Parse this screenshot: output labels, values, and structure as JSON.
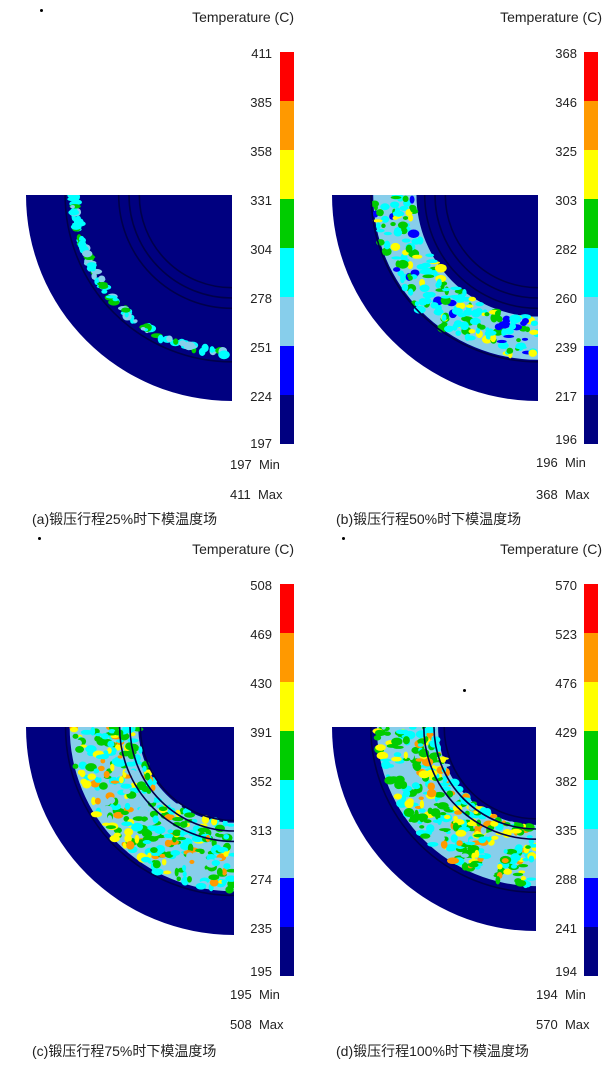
{
  "legend_title": "Temperature (C)",
  "min_label": "Min",
  "max_label": "Max",
  "color_scale": [
    "#000080",
    "#0000ff",
    "#87ceeb",
    "#00ffff",
    "#00cc00",
    "#ffff00",
    "#ff9900",
    "#ff0000"
  ],
  "panels": [
    {
      "caption": "(a)锻压行程25%时下模温度场",
      "ticks": [
        "411",
        "385",
        "358",
        "331",
        "304",
        "278",
        "251",
        "224",
        "197"
      ],
      "min_value": "197",
      "max_value": "411",
      "hot_band": {
        "inner_frac": 0.74,
        "outer_frac": 0.8,
        "level": "weak"
      }
    },
    {
      "caption": "(b)锻压行程50%时下模温度场",
      "ticks": [
        "368",
        "346",
        "325",
        "303",
        "282",
        "260",
        "239",
        "217",
        "196"
      ],
      "min_value": "196",
      "max_value": "368",
      "hot_band": {
        "inner_frac": 0.59,
        "outer_frac": 0.8,
        "level": "medium"
      }
    },
    {
      "caption": "(c)锻压行程75%时下模温度场",
      "ticks": [
        "508",
        "469",
        "430",
        "391",
        "352",
        "313",
        "274",
        "235",
        "195"
      ],
      "min_value": "195",
      "max_value": "508",
      "hot_band": {
        "inner_frac": 0.46,
        "outer_frac": 0.79,
        "level": "strong"
      }
    },
    {
      "caption": "(d)锻压行程100%时下模温度场",
      "ticks": [
        "570",
        "523",
        "476",
        "429",
        "382",
        "335",
        "288",
        "241",
        "194"
      ],
      "min_value": "194",
      "max_value": "570",
      "hot_band": {
        "inner_frac": 0.48,
        "outer_frac": 0.78,
        "level": "strong"
      }
    }
  ]
}
